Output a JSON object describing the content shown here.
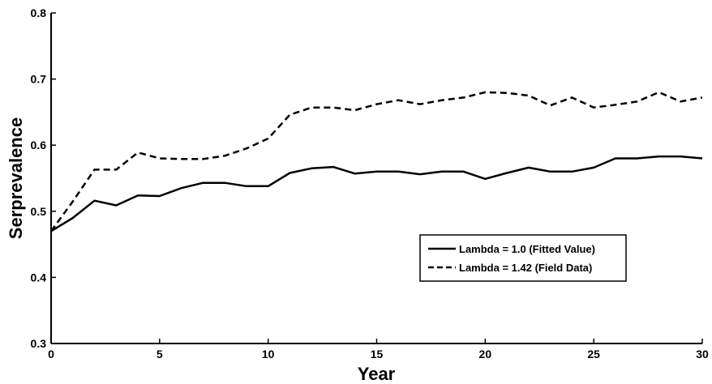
{
  "chart_data": {
    "type": "line",
    "xlabel": "Year",
    "ylabel": "Serprevalence",
    "xlim": [
      0,
      30
    ],
    "ylim": [
      0.3,
      0.8
    ],
    "xticks": [
      0,
      5,
      10,
      15,
      20,
      25,
      30
    ],
    "xtick_labels": [
      "0",
      "5",
      "10",
      "15",
      "20",
      "25",
      "30"
    ],
    "yticks": [
      0.3,
      0.4,
      0.5,
      0.6,
      0.7,
      0.8
    ],
    "ytick_labels": [
      "0.3",
      "0.4",
      "0.5",
      "0.6",
      "0.7",
      "0.8"
    ],
    "grid": false,
    "legend_position": "lower-right",
    "x": [
      0,
      1,
      2,
      3,
      4,
      5,
      6,
      7,
      8,
      9,
      10,
      11,
      12,
      13,
      14,
      15,
      16,
      17,
      18,
      19,
      20,
      21,
      22,
      23,
      24,
      25,
      26,
      27,
      28,
      29,
      30
    ],
    "series": [
      {
        "name": "Lambda = 1.0 (Fitted Value)",
        "style": "solid",
        "color": "#000000",
        "values": [
          0.47,
          0.49,
          0.516,
          0.509,
          0.524,
          0.523,
          0.535,
          0.543,
          0.543,
          0.538,
          0.538,
          0.558,
          0.565,
          0.567,
          0.557,
          0.56,
          0.56,
          0.556,
          0.56,
          0.56,
          0.549,
          0.558,
          0.566,
          0.56,
          0.56,
          0.566,
          0.58,
          0.58,
          0.583,
          0.583,
          0.58
        ]
      },
      {
        "name": "Lambda = 1.42 (Field Data)",
        "style": "dashed",
        "color": "#000000",
        "values": [
          0.47,
          0.515,
          0.563,
          0.563,
          0.589,
          0.58,
          0.579,
          0.579,
          0.584,
          0.595,
          0.61,
          0.646,
          0.657,
          0.657,
          0.653,
          0.662,
          0.668,
          0.662,
          0.668,
          0.672,
          0.68,
          0.679,
          0.675,
          0.66,
          0.672,
          0.657,
          0.661,
          0.666,
          0.68,
          0.666,
          0.672
        ]
      }
    ]
  }
}
